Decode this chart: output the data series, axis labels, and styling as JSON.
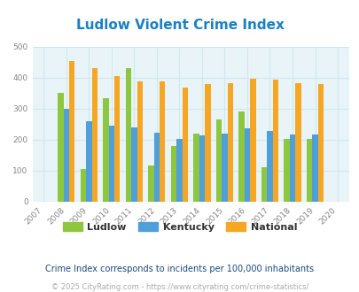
{
  "title": "Ludlow Violent Crime Index",
  "years": [
    2007,
    2008,
    2009,
    2010,
    2011,
    2012,
    2013,
    2014,
    2015,
    2016,
    2017,
    2018,
    2019,
    2020
  ],
  "data_years": [
    2008,
    2009,
    2010,
    2011,
    2012,
    2013,
    2014,
    2015,
    2016,
    2017,
    2018,
    2019
  ],
  "ludlow": [
    350,
    105,
    333,
    430,
    115,
    178,
    220,
    265,
    290,
    112,
    203,
    202
  ],
  "kentucky": [
    298,
    260,
    245,
    240,
    223,
    202,
    214,
    220,
    235,
    228,
    215,
    217
  ],
  "national": [
    455,
    432,
    406,
    387,
    387,
    367,
    379,
    383,
    397,
    394,
    381,
    380
  ],
  "colors": {
    "ludlow": "#8dc63f",
    "kentucky": "#4f9fda",
    "national": "#f5a623"
  },
  "bg_color": "#e8f4f8",
  "grid_color": "#d0e8f0",
  "ylim": [
    0,
    500
  ],
  "yticks": [
    0,
    100,
    200,
    300,
    400,
    500
  ],
  "tick_color": "#888888",
  "title_color": "#1a80c4",
  "title_fontsize": 11,
  "subtitle": "Crime Index corresponds to incidents per 100,000 inhabitants",
  "footer": "© 2025 CityRating.com - https://www.cityrating.com/crime-statistics/",
  "subtitle_color": "#1a4a7a",
  "footer_color": "#aaaaaa",
  "legend_label_color": "#333333"
}
